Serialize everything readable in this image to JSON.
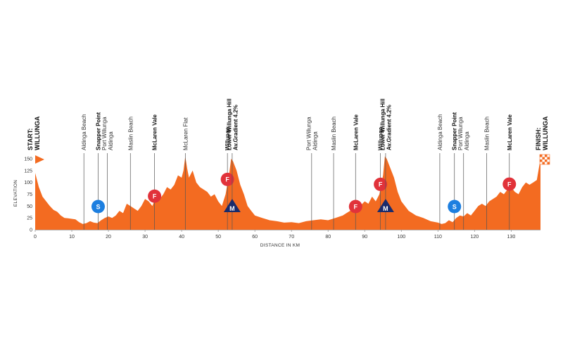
{
  "chart_data": {
    "type": "area",
    "xlabel": "DISTANCE IN KM",
    "ylabel": "ELEVATION",
    "xlim": [
      0,
      138
    ],
    "ylim": [
      0,
      150
    ],
    "x_ticks": [
      0,
      10,
      20,
      30,
      40,
      50,
      60,
      70,
      80,
      90,
      100,
      110,
      120,
      130
    ],
    "y_ticks": [
      0,
      25,
      50,
      75,
      100,
      125,
      150
    ],
    "fill_color": "#f36b21",
    "series": [
      {
        "x": [
          0,
          1,
          2,
          3,
          4,
          5,
          6,
          7,
          8,
          9,
          10,
          11,
          12,
          13,
          14,
          15,
          16,
          17,
          18,
          19,
          20,
          21,
          22,
          23,
          24,
          25,
          26,
          27,
          28,
          29,
          30,
          31,
          32,
          33,
          34,
          35,
          36,
          37,
          38,
          39,
          40,
          40.5,
          41,
          41.5,
          42,
          43,
          44,
          45,
          46,
          47,
          48,
          49,
          50,
          51,
          52,
          53,
          53.5,
          54,
          55,
          56,
          57,
          58,
          59,
          60,
          62,
          64,
          66,
          68,
          70,
          72,
          74,
          76,
          78,
          80,
          82,
          84,
          86,
          88,
          90,
          91,
          92,
          93,
          94,
          95,
          95.5,
          96,
          97,
          98,
          99,
          100,
          102,
          104,
          106,
          108,
          110,
          111,
          112,
          113,
          114,
          115,
          116,
          117,
          118,
          119,
          120,
          121,
          122,
          123,
          124,
          125,
          126,
          127,
          128,
          129,
          130,
          131,
          132,
          133,
          134,
          135,
          136,
          137,
          138
        ],
        "y": [
          120,
          90,
          70,
          60,
          50,
          42,
          38,
          30,
          25,
          24,
          23,
          22,
          16,
          12,
          14,
          18,
          15,
          14,
          20,
          25,
          28,
          25,
          30,
          40,
          35,
          55,
          50,
          45,
          40,
          50,
          65,
          60,
          50,
          70,
          65,
          75,
          90,
          85,
          95,
          115,
          110,
          125,
          155,
          130,
          110,
          125,
          100,
          90,
          85,
          80,
          70,
          75,
          60,
          50,
          75,
          120,
          150,
          145,
          125,
          95,
          75,
          50,
          40,
          30,
          25,
          20,
          18,
          15,
          16,
          14,
          18,
          20,
          22,
          20,
          25,
          30,
          40,
          45,
          60,
          55,
          70,
          60,
          75,
          115,
          155,
          150,
          130,
          110,
          80,
          60,
          40,
          30,
          25,
          18,
          15,
          12,
          14,
          20,
          16,
          25,
          30,
          28,
          35,
          30,
          40,
          50,
          55,
          50,
          60,
          65,
          70,
          80,
          75,
          85,
          90,
          80,
          75,
          90,
          100,
          95,
          100,
          105,
          150
        ]
      }
    ],
    "start_label": [
      "START:",
      "WILLUNGA"
    ],
    "finish_label": [
      "FINISH:",
      "WILLUNGA"
    ],
    "annotations": [
      {
        "km": 13.3,
        "lines": [
          "Aldinga Beach"
        ],
        "bold": false
      },
      {
        "km": 17.2,
        "lines": [
          "Snapper Point"
        ],
        "bold": true,
        "badge": "S"
      },
      {
        "km": 19.7,
        "lines": [
          "Port Willunga",
          "Aldinga"
        ],
        "bold": false
      },
      {
        "km": 26,
        "lines": [
          "Maslin Beach"
        ],
        "bold": false
      },
      {
        "km": 32.6,
        "lines": [
          "McLaren Vale"
        ],
        "bold": true,
        "badge": "F"
      },
      {
        "km": 41,
        "lines": [
          "McLaren Flat"
        ],
        "bold": false
      },
      {
        "km": 52.5,
        "lines": [
          "Willunga"
        ],
        "bold": true,
        "badge": "F"
      },
      {
        "km": 53.8,
        "lines": [
          "Lower Willunga Hill",
          "Av.Gradient 4.2%"
        ],
        "bold": true,
        "badge": "M"
      },
      {
        "km": 75.5,
        "lines": [
          "Port Willunga",
          "Aldinga"
        ],
        "bold": false
      },
      {
        "km": 81.5,
        "lines": [
          "Maslin Beach"
        ],
        "bold": false
      },
      {
        "km": 87.5,
        "lines": [
          "McLaren Vale"
        ],
        "bold": true,
        "badge": "F"
      },
      {
        "km": 94.3,
        "lines": [
          "Willunga"
        ],
        "bold": true,
        "badge": "F"
      },
      {
        "km": 95.7,
        "lines": [
          "Lower Willunga Hill",
          "Av.Gradient 4.2%"
        ],
        "bold": true,
        "badge": "M"
      },
      {
        "km": 110.5,
        "lines": [
          "Aldinga Beach"
        ],
        "bold": false
      },
      {
        "km": 114.5,
        "lines": [
          "Snapper Point"
        ],
        "bold": true,
        "badge": "S"
      },
      {
        "km": 117,
        "lines": [
          "Port Willunga",
          "Aldinga"
        ],
        "bold": false
      },
      {
        "km": 123.3,
        "lines": [
          "Maslin Beach"
        ],
        "bold": false
      },
      {
        "km": 129.5,
        "lines": [
          "McLaren Vale"
        ],
        "bold": true,
        "badge": "F"
      }
    ],
    "badge_colors": {
      "S": "#1d7fe0",
      "F": "#e1323a",
      "M": "#1a2b6b"
    }
  }
}
